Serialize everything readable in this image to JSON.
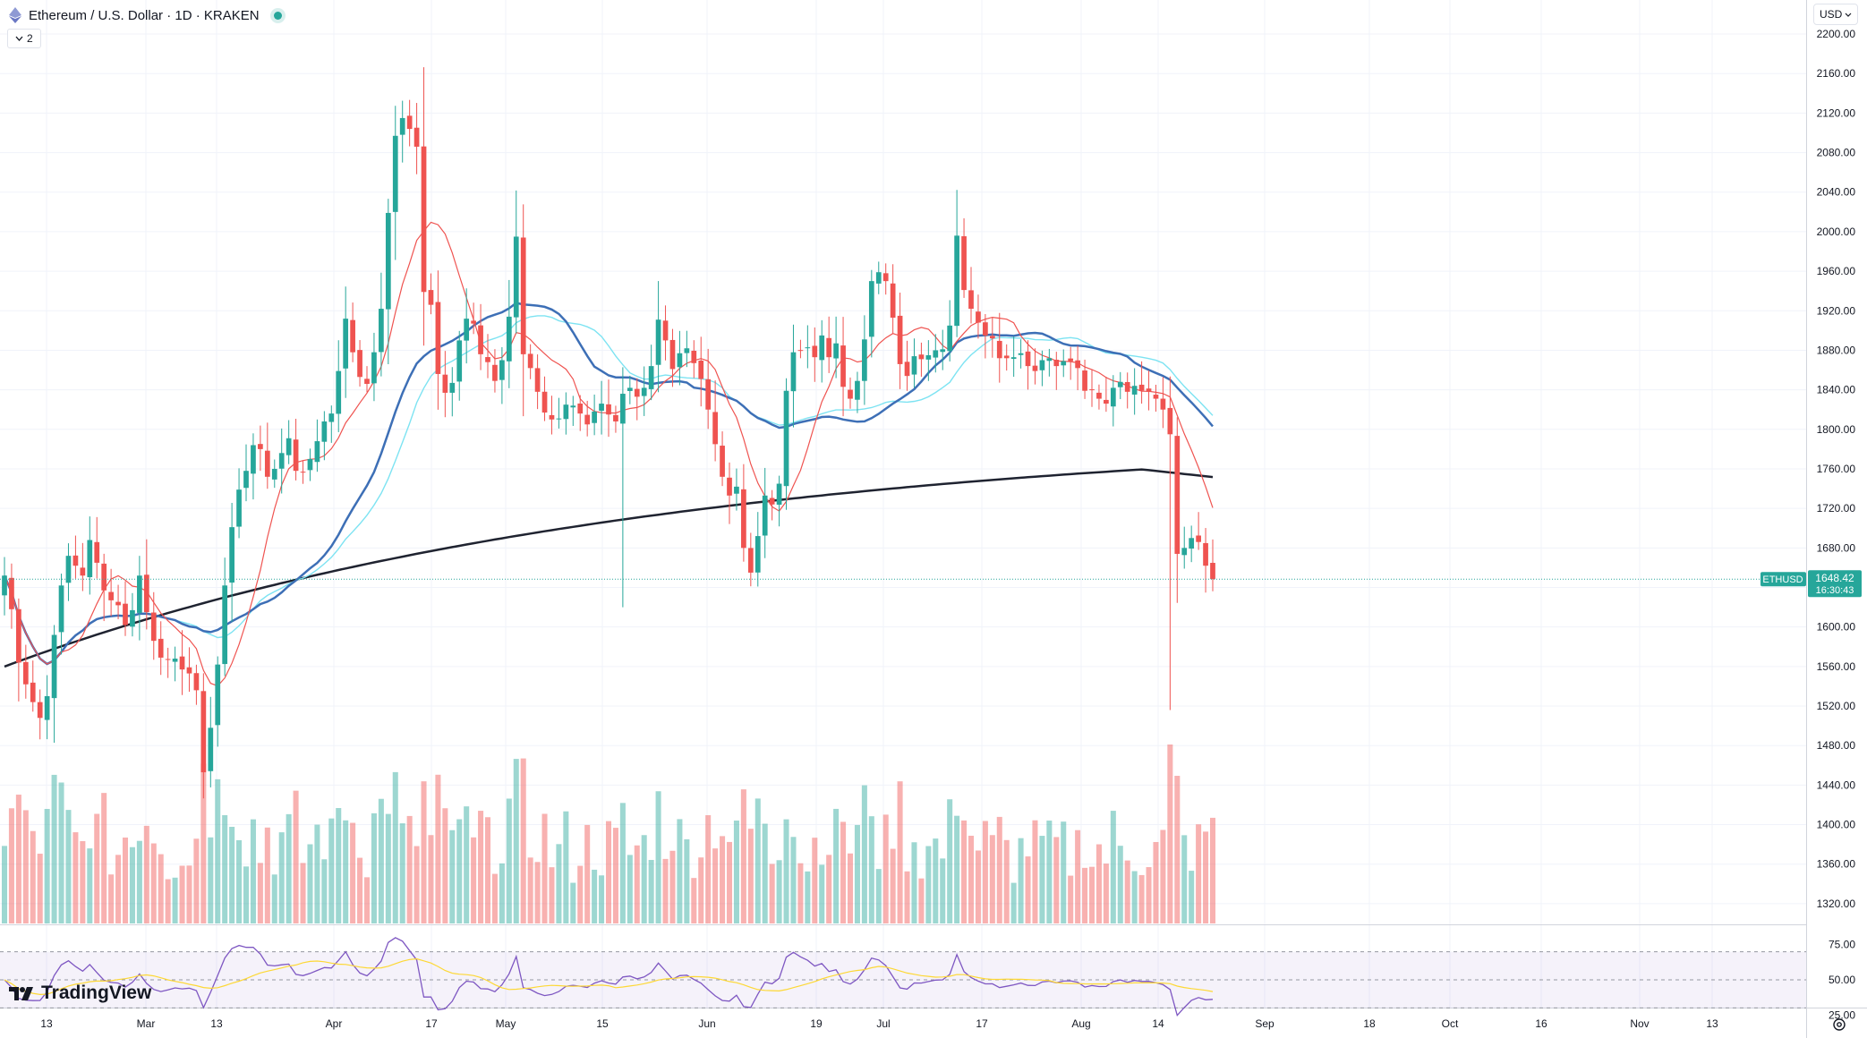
{
  "header": {
    "title": "Ethereum / U.S. Dollar · 1D · KRAKEN",
    "hidden_indicators_count": "2",
    "currency": "USD"
  },
  "price_label": {
    "symbol": "ETHUSD",
    "last_price": "1648.42",
    "countdown": "16:30:43"
  },
  "branding": {
    "logo_text": "TradingView"
  },
  "icons": {
    "coin": "ethereum-icon",
    "hide": "chevron-down-icon",
    "currency": "chevron-down-icon",
    "settings": "gear-icon",
    "logo": "tradingview-logo-icon"
  },
  "colors": {
    "up": "#26a69a",
    "down": "#ef5350",
    "sma_fast": "#ef5350",
    "sma_mid": "#3d6fb6",
    "sma_long": "#1f2330",
    "sma_cyan": "#7de3f2",
    "rsi_line": "#7e57c2",
    "rsi_ma": "#fdd835"
  },
  "chart_data": {
    "type": "candlestick",
    "symbol": "ETHUSD",
    "interval": "1D",
    "exchange": "KRAKEN",
    "price_axis": {
      "ticks": [
        "1320.00",
        "1360.00",
        "1400.00",
        "1440.00",
        "1480.00",
        "1520.00",
        "1560.00",
        "1600.00",
        "1640.00",
        "1680.00",
        "1720.00",
        "1760.00",
        "1800.00",
        "1840.00",
        "1880.00",
        "1920.00",
        "1960.00",
        "2000.00",
        "2040.00",
        "2080.00",
        "2120.00",
        "2160.00",
        "2200.00"
      ],
      "ylim": [
        1300,
        2210
      ]
    },
    "rsi_axis": {
      "ticks": [
        "25.00",
        "50.00",
        "75.00"
      ],
      "ylim": [
        15,
        85
      ],
      "band": [
        30,
        70
      ]
    },
    "time_axis": {
      "labels": [
        "13",
        "Mar",
        "13",
        "Apr",
        "17",
        "May",
        "15",
        "Jun",
        "19",
        "Jul",
        "17",
        "Aug",
        "14",
        "Sep",
        "18",
        "Oct",
        "16",
        "Nov",
        "13"
      ]
    },
    "last_price": 1648.42,
    "closes": [
      1652,
      1618,
      1564,
      1542,
      1524,
      1508,
      1530,
      1592,
      1642,
      1672,
      1662,
      1652,
      1688,
      1665,
      1637,
      1627,
      1622,
      1602,
      1617,
      1652,
      1615,
      1586,
      1569,
      1567,
      1568,
      1557,
      1553,
      1536,
      1453,
      1498,
      1562,
      1642,
      1701,
      1739,
      1758,
      1784,
      1780,
      1752,
      1760,
      1776,
      1791,
      1758,
      1757,
      1770,
      1788,
      1808,
      1816,
      1859,
      1912,
      1878,
      1853,
      1846,
      1878,
      1922,
      2019,
      2097,
      2115,
      2104,
      2086,
      1939,
      1926,
      1856,
      1837,
      1847,
      1890,
      1912,
      1907,
      1876,
      1868,
      1849,
      1870,
      1914,
      1995,
      1876,
      1862,
      1838,
      1817,
      1810,
      1811,
      1825,
      1824,
      1816,
      1805,
      1818,
      1826,
      1815,
      1808,
      1836,
      1842,
      1833,
      1842,
      1864,
      1911,
      1890,
      1861,
      1877,
      1882,
      1867,
      1851,
      1820,
      1785,
      1752,
      1733,
      1742,
      1680,
      1655,
      1692,
      1733,
      1724,
      1745,
      1839,
      1878,
      1880,
      1883,
      1873,
      1895,
      1873,
      1887,
      1843,
      1831,
      1849,
      1891,
      1950,
      1959,
      1950,
      1913,
      1866,
      1854,
      1874,
      1871,
      1875,
      1880,
      1881,
      1905,
      1996,
      1941,
      1922,
      1908,
      1895,
      1892,
      1872,
      1872,
      1873,
      1877,
      1864,
      1859,
      1870,
      1872,
      1864,
      1869,
      1869,
      1862,
      1839,
      1840,
      1831,
      1826,
      1842,
      1848,
      1838,
      1844,
      1839,
      1838,
      1831,
      1820,
      1795,
      1674,
      1680,
      1690,
      1686,
      1662,
      1648.42
    ]
  }
}
